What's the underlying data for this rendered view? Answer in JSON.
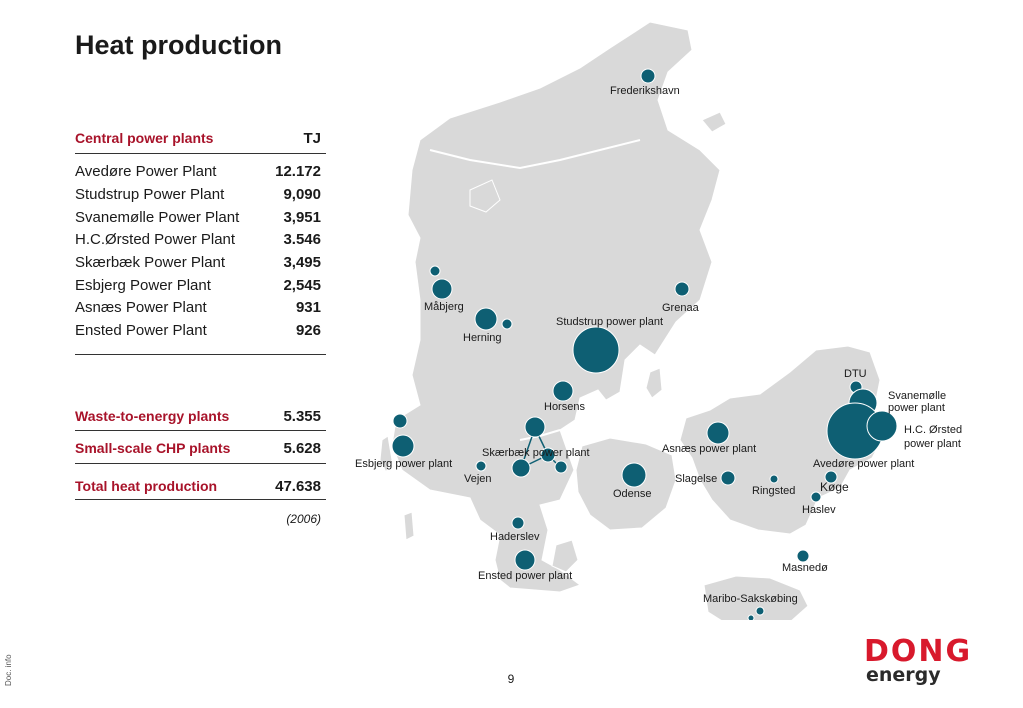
{
  "title": "Heat production",
  "table": {
    "central_header": "Central power plants",
    "unit_header": "TJ",
    "rows": [
      {
        "name": "Avedøre Power Plant",
        "value": "12.172"
      },
      {
        "name": "Studstrup Power Plant",
        "value": "9,090"
      },
      {
        "name": "Svanemølle Power Plant",
        "value": "3,951"
      },
      {
        "name": "H.C.Ørsted Power Plant",
        "value": "3.546"
      },
      {
        "name": "Skærbæk Power Plant",
        "value": "3,495"
      },
      {
        "name": "Esbjerg Power Plant",
        "value": "2,545"
      },
      {
        "name": "Asnæs Power Plant",
        "value": "931"
      },
      {
        "name": "Ensted Power Plant",
        "value": "926"
      }
    ],
    "waste": {
      "name": "Waste-to-energy plants",
      "value": "5.355"
    },
    "small": {
      "name": "Small-scale CHP plants",
      "value": "5.628"
    },
    "total": {
      "name": "Total heat production",
      "value": "47.638"
    },
    "year": "(2006)"
  },
  "map": {
    "colors": {
      "land": "#d9d9d9",
      "coast": "#ffffff",
      "marker": "#0e5f73"
    },
    "labels": {
      "frederikshavn": "Frederikshavn",
      "maabjerg": "Måbjerg",
      "grenaa": "Grenaa",
      "studstrup": "Studstrup power plant",
      "herning": "Herning",
      "dtu": "DTU",
      "svanemolle": "Svanemølle power plant",
      "hc_orsted": "H.C. Ørsted power plant",
      "horsens": "Horsens",
      "asnaes": "Asnæs power plant",
      "esbjerg": "Esbjerg power plant",
      "skaerbaek": "Skærbæk power plant",
      "avedore": "Avedøre power plant",
      "vejen": "Vejen",
      "slagelse": "Slagelse",
      "odense": "Odense",
      "ringsted": "Ringsted",
      "koge": "Køge",
      "haslev": "Haslev",
      "haderslev": "Haderslev",
      "ensted": "Ensted power plant",
      "masnedo": "Masnedø",
      "maribo": "Maribo-Sakskøbing"
    }
  },
  "page_number": "9",
  "doc_info": "Doc. info",
  "logo": {
    "line1": "DONG",
    "line2": "energy"
  }
}
